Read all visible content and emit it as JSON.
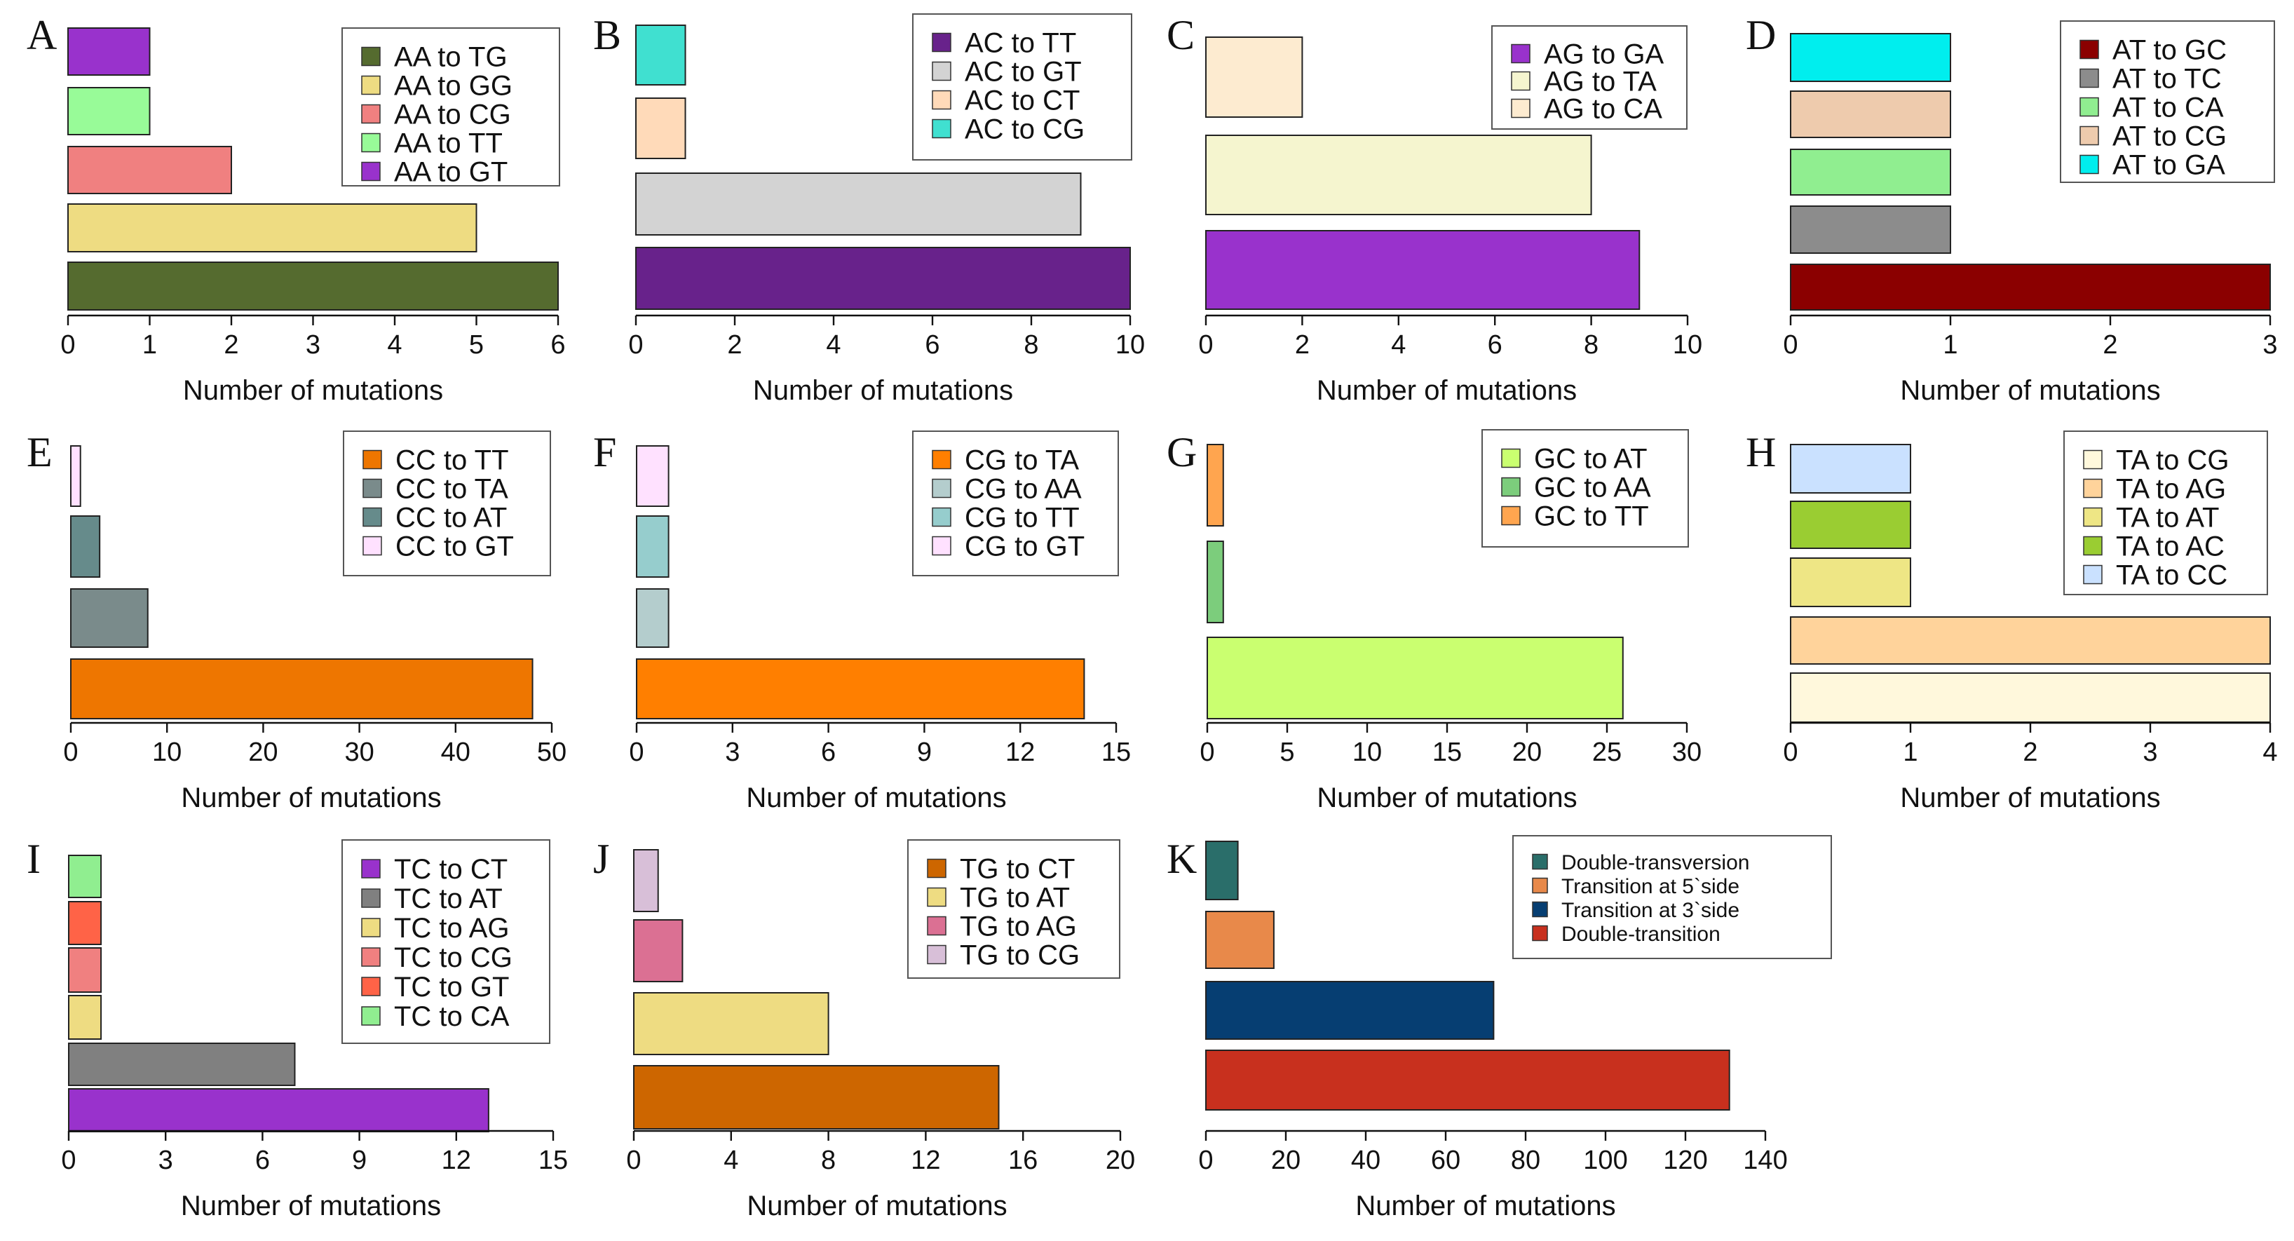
{
  "chart_data": [
    {
      "letter": "A",
      "type": "bar",
      "orientation": "horizontal",
      "xlabel": "Number of mutations",
      "xlim": [
        0,
        6
      ],
      "ticks": [
        0,
        1,
        2,
        3,
        4,
        5,
        6
      ],
      "bars": [
        {
          "name": "AA to TG",
          "value": 6,
          "color": "#556b2f"
        },
        {
          "name": "AA to GG",
          "value": 5,
          "color": "#eedc82"
        },
        {
          "name": "AA to CG",
          "value": 2,
          "color": "#f08080"
        },
        {
          "name": "AA to TT",
          "value": 1,
          "color": "#98fb98"
        },
        {
          "name": "AA to GT",
          "value": 1,
          "color": "#9932cc"
        }
      ]
    },
    {
      "letter": "B",
      "type": "bar",
      "orientation": "horizontal",
      "xlabel": "Number of mutations",
      "xlim": [
        0,
        10
      ],
      "ticks": [
        0,
        2,
        4,
        6,
        8,
        10
      ],
      "bars": [
        {
          "name": "AC to TT",
          "value": 10,
          "color": "#68228b"
        },
        {
          "name": "AC to GT",
          "value": 9,
          "color": "#d3d3d3"
        },
        {
          "name": "AC to CT",
          "value": 1,
          "color": "#ffdab9"
        },
        {
          "name": "AC to CG",
          "value": 1,
          "color": "#40e0d0"
        }
      ]
    },
    {
      "letter": "C",
      "type": "bar",
      "orientation": "horizontal",
      "xlabel": "Number of mutations",
      "xlim": [
        0,
        10
      ],
      "ticks": [
        0,
        2,
        4,
        6,
        8,
        10
      ],
      "bars": [
        {
          "name": "AG to GA",
          "value": 9,
          "color": "#9932cc"
        },
        {
          "name": "AG to TA",
          "value": 8,
          "color": "#f5f5cf"
        },
        {
          "name": "AG to CA",
          "value": 2,
          "color": "#fdebd0"
        }
      ]
    },
    {
      "letter": "D",
      "type": "bar",
      "orientation": "horizontal",
      "xlabel": "Number of mutations",
      "xlim": [
        0,
        3
      ],
      "ticks": [
        0,
        1,
        2,
        3
      ],
      "bars": [
        {
          "name": "AT to GC",
          "value": 3,
          "color": "#8b0000"
        },
        {
          "name": "AT to TC",
          "value": 1,
          "color": "#8c8c8c"
        },
        {
          "name": "AT to CA",
          "value": 1,
          "color": "#90ee90"
        },
        {
          "name": "AT to CG",
          "value": 1,
          "color": "#eecbad"
        },
        {
          "name": "AT to GA",
          "value": 1,
          "color": "#00eeee"
        }
      ]
    },
    {
      "letter": "E",
      "type": "bar",
      "orientation": "horizontal",
      "xlabel": "Number of mutations",
      "xlim": [
        0,
        50
      ],
      "ticks": [
        0,
        10,
        20,
        30,
        40,
        50
      ],
      "bars": [
        {
          "name": "CC to TT",
          "value": 48,
          "color": "#ee7600"
        },
        {
          "name": "CC to TA",
          "value": 8,
          "color": "#7a8b8b"
        },
        {
          "name": "CC to AT",
          "value": 3,
          "color": "#668b8b"
        },
        {
          "name": "CC to GT",
          "value": 1,
          "color": "#ffe1ff"
        }
      ]
    },
    {
      "letter": "F",
      "type": "bar",
      "orientation": "horizontal",
      "xlabel": "Number of mutations",
      "xlim": [
        0,
        15
      ],
      "ticks": [
        0,
        3,
        6,
        9,
        12,
        15
      ],
      "bars": [
        {
          "name": "CG to TA",
          "value": 14,
          "color": "#ff7f00"
        },
        {
          "name": "CG to AA",
          "value": 1,
          "color": "#b4cdcd"
        },
        {
          "name": "CG to TT",
          "value": 1,
          "color": "#96cdcd"
        },
        {
          "name": "CG to GT",
          "value": 1,
          "color": "#ffe1ff"
        }
      ]
    },
    {
      "letter": "G",
      "type": "bar",
      "orientation": "horizontal",
      "xlabel": "Number of mutations",
      "xlim": [
        0,
        30
      ],
      "ticks": [
        0,
        5,
        10,
        15,
        20,
        25,
        30
      ],
      "bars": [
        {
          "name": "GC to AT",
          "value": 26,
          "color": "#caff70"
        },
        {
          "name": "GC to AA",
          "value": 1,
          "color": "#7ccd7c"
        },
        {
          "name": "GC to TT",
          "value": 1,
          "color": "#ffa54f"
        }
      ]
    },
    {
      "letter": "H",
      "type": "bar",
      "orientation": "horizontal",
      "xlabel": "Number of mutations",
      "xlim": [
        0,
        4
      ],
      "ticks": [
        0,
        1,
        2,
        3,
        4
      ],
      "bars": [
        {
          "name": "TA to CG",
          "value": 4,
          "color": "#fff8dc"
        },
        {
          "name": "TA to AG",
          "value": 4,
          "color": "#ffd39b"
        },
        {
          "name": "TA to AT",
          "value": 1,
          "color": "#eee685"
        },
        {
          "name": "TA to AC",
          "value": 1,
          "color": "#9acd32"
        },
        {
          "name": "TA to CC",
          "value": 1,
          "color": "#cae1ff"
        }
      ]
    },
    {
      "letter": "I",
      "type": "bar",
      "orientation": "horizontal",
      "xlabel": "Number of mutations",
      "xlim": [
        0,
        15
      ],
      "ticks": [
        0,
        3,
        6,
        9,
        12,
        15
      ],
      "bars": [
        {
          "name": "TC to CT",
          "value": 13,
          "color": "#9932cc"
        },
        {
          "name": "TC to AT",
          "value": 7,
          "color": "#808080"
        },
        {
          "name": "TC to AG",
          "value": 1,
          "color": "#eedc82"
        },
        {
          "name": "TC to CG",
          "value": 1,
          "color": "#f08080"
        },
        {
          "name": "TC to GT",
          "value": 1,
          "color": "#ff6347"
        },
        {
          "name": "TC to CA",
          "value": 1,
          "color": "#90ee90"
        }
      ]
    },
    {
      "letter": "J",
      "type": "bar",
      "orientation": "horizontal",
      "xlabel": "Number of mutations",
      "xlim": [
        0,
        20
      ],
      "ticks": [
        0,
        4,
        8,
        12,
        16,
        20
      ],
      "bars": [
        {
          "name": "TG to CT",
          "value": 15,
          "color": "#cd6600"
        },
        {
          "name": "TG to AT",
          "value": 8,
          "color": "#eedc82"
        },
        {
          "name": "TG to AG",
          "value": 2,
          "color": "#db7093"
        },
        {
          "name": "TG to CG",
          "value": 1,
          "color": "#d8bfd8"
        }
      ]
    },
    {
      "letter": "K",
      "type": "bar",
      "orientation": "horizontal",
      "xlabel": "Number of mutations",
      "xlim": [
        0,
        140
      ],
      "ticks": [
        0,
        20,
        40,
        60,
        80,
        100,
        120,
        140
      ],
      "bars": [
        {
          "name": "Double-transition",
          "value": 131,
          "color": "#c8301e"
        },
        {
          "name": "Transition at 3`side",
          "value": 72,
          "color": "#063e72"
        },
        {
          "name": "Transition at 5`side",
          "value": 17,
          "color": "#e8894a"
        },
        {
          "name": "Double-transversion",
          "value": 8,
          "color": "#2a6e6a"
        }
      ],
      "legend_order": [
        "Double-transversion",
        "Transition at 5`side",
        "Transition at 3`side",
        "Double-transition"
      ]
    }
  ]
}
